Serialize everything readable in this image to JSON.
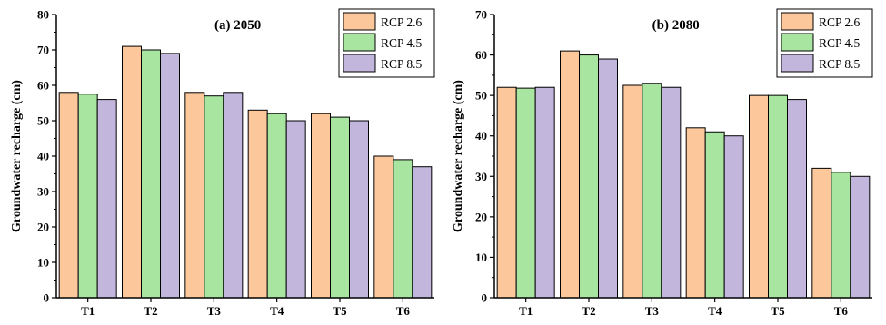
{
  "chart_data": [
    {
      "type": "bar",
      "title": "(a) 2050",
      "xlabel": "",
      "ylabel": "Groundwater recharge (cm)",
      "ylim": [
        0,
        80
      ],
      "yticks": [
        0,
        10,
        20,
        30,
        40,
        50,
        60,
        70,
        80
      ],
      "grid": false,
      "legend_position": "top-right",
      "categories": [
        "T1",
        "T2",
        "T3",
        "T4",
        "T5",
        "T6"
      ],
      "series": [
        {
          "name": "RCP 2.6",
          "color": "#FCC89B",
          "values": [
            58,
            71,
            58,
            53,
            52,
            40
          ]
        },
        {
          "name": "RCP 4.5",
          "color": "#A8E5A0",
          "values": [
            57.5,
            70,
            57,
            52,
            51,
            39
          ]
        },
        {
          "name": "RCP 8.5",
          "color": "#C3B6DC",
          "values": [
            56,
            69,
            58,
            50,
            50,
            37
          ]
        }
      ]
    },
    {
      "type": "bar",
      "title": "(b) 2080",
      "xlabel": "",
      "ylabel": "Groundwater recharge (cm)",
      "ylim": [
        0,
        70
      ],
      "yticks": [
        0,
        10,
        20,
        30,
        40,
        50,
        60,
        70
      ],
      "grid": false,
      "legend_position": "top-right",
      "categories": [
        "T1",
        "T2",
        "T3",
        "T4",
        "T5",
        "T6"
      ],
      "series": [
        {
          "name": "RCP 2.6",
          "color": "#FCC89B",
          "values": [
            52,
            61,
            52.5,
            42,
            50,
            32
          ]
        },
        {
          "name": "RCP 4.5",
          "color": "#A8E5A0",
          "values": [
            51.8,
            60,
            53,
            41,
            50,
            31
          ]
        },
        {
          "name": "RCP 8.5",
          "color": "#C3B6DC",
          "values": [
            52,
            59,
            52,
            40,
            49,
            30
          ]
        }
      ]
    }
  ]
}
